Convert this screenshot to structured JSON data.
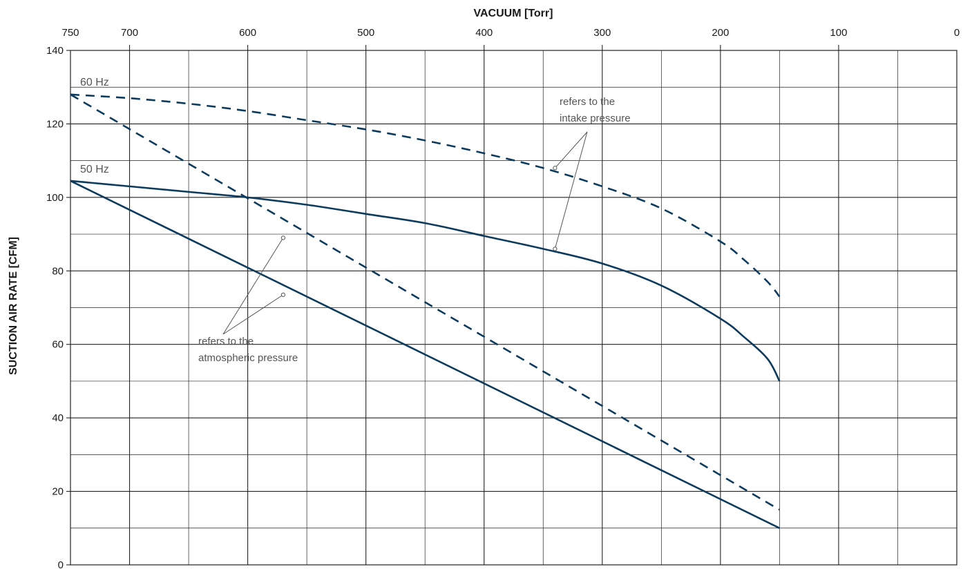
{
  "chart_data": {
    "type": "line",
    "title": "",
    "xlabel": "VACUUM  [Torr]",
    "ylabel": "SUCTION AIR RATE  [CFM]",
    "xlim": [
      750,
      0
    ],
    "ylim": [
      0,
      140
    ],
    "x_ticks": [
      750,
      700,
      600,
      500,
      400,
      300,
      200,
      100,
      0
    ],
    "x_tick_labels": [
      "750",
      "700",
      "600",
      "500",
      "400",
      "300",
      "200",
      "100",
      "0"
    ],
    "y_ticks": [
      0,
      20,
      40,
      60,
      80,
      100,
      120,
      140
    ],
    "y_tick_labels": [
      "0",
      "20",
      "40",
      "60",
      "80",
      "100",
      "120",
      "140"
    ],
    "grid": true,
    "series_labels": [
      "60 Hz",
      "50 Hz"
    ],
    "series": [
      {
        "group": "60 Hz",
        "reference": "intake pressure",
        "style": "dashed",
        "x": [
          750,
          700,
          650,
          600,
          550,
          500,
          450,
          400,
          350,
          300,
          250,
          200,
          180,
          160,
          150
        ],
        "y": [
          128,
          127,
          125.5,
          123.5,
          121,
          118.5,
          115.5,
          112,
          108,
          103,
          97,
          88,
          83,
          77,
          73
        ]
      },
      {
        "group": "60 Hz",
        "reference": "atmospheric pressure",
        "style": "dashed",
        "x": [
          750,
          150
        ],
        "y": [
          128,
          15
        ]
      },
      {
        "group": "50 Hz",
        "reference": "intake pressure",
        "style": "solid",
        "x": [
          750,
          700,
          650,
          600,
          550,
          500,
          450,
          400,
          350,
          300,
          250,
          200,
          180,
          160,
          150
        ],
        "y": [
          104.5,
          103,
          101.5,
          100,
          98,
          95.5,
          93,
          89.5,
          86,
          82,
          76,
          67,
          62,
          56,
          50
        ]
      },
      {
        "group": "50 Hz",
        "reference": "atmospheric pressure",
        "style": "solid",
        "x": [
          750,
          150
        ],
        "y": [
          104.5,
          10
        ]
      }
    ],
    "annotations": [
      {
        "lines": [
          "refers to the",
          "intake pressure"
        ]
      },
      {
        "lines": [
          "refers to the",
          "atmospheric pressure"
        ]
      }
    ],
    "colors": {
      "series": "#0d3b5e",
      "grid": "#222222",
      "leader": "#555555"
    }
  }
}
